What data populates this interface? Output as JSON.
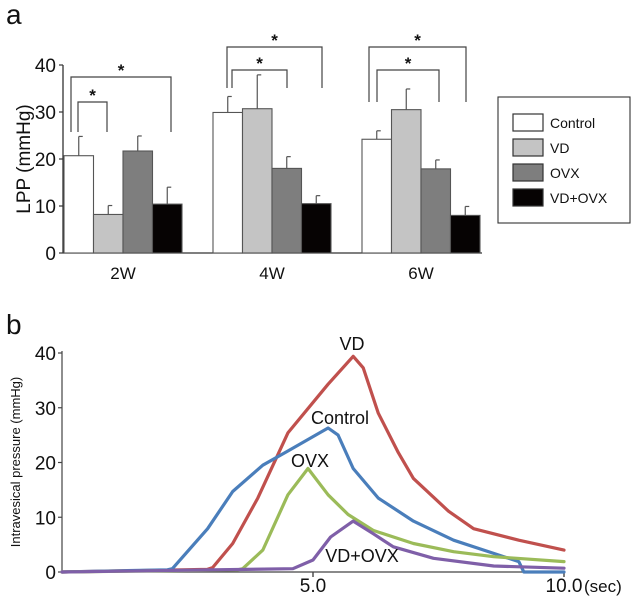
{
  "chart_data": [
    {
      "panel_label": "a",
      "type": "bar",
      "ylabel": "LPP (mmHg)",
      "xlabel": "",
      "ylim": [
        0,
        40
      ],
      "yticks": [
        0,
        10,
        20,
        30,
        40
      ],
      "grid": false,
      "legend_position": "right",
      "categories": [
        "2W",
        "4W",
        "6W"
      ],
      "series": [
        {
          "name": "Control",
          "color": "#ffffff",
          "values": [
            20.7,
            29.9,
            24.2
          ],
          "error_upper": [
            24.8,
            33.3,
            26.0
          ]
        },
        {
          "name": "VD",
          "color": "#c4c4c4",
          "values": [
            8.2,
            30.7,
            30.5
          ],
          "error_upper": [
            10.1,
            37.9,
            34.9
          ]
        },
        {
          "name": "OVX",
          "color": "#7e7e7e",
          "values": [
            21.7,
            18.0,
            17.9
          ],
          "error_upper": [
            24.9,
            20.5,
            19.8
          ]
        },
        {
          "name": "VD+OVX",
          "color": "#060303",
          "values": [
            10.4,
            10.5,
            8.0
          ],
          "error_upper": [
            14.0,
            12.2,
            9.9
          ]
        }
      ],
      "significance": [
        {
          "category": "2W",
          "from": "Control",
          "to": "VD",
          "mark": "*"
        },
        {
          "category": "2W",
          "from": "Control",
          "to": "VD+OVX",
          "mark": "*"
        },
        {
          "category": "4W",
          "from": "Control",
          "to": "OVX",
          "mark": "*"
        },
        {
          "category": "4W",
          "from": "Control",
          "to": "VD+OVX",
          "mark": "*"
        },
        {
          "category": "6W",
          "from": "Control",
          "to": "OVX",
          "mark": "*"
        },
        {
          "category": "6W",
          "from": "Control",
          "to": "VD+OVX",
          "mark": "*"
        }
      ]
    },
    {
      "panel_label": "b",
      "type": "line",
      "ylabel": "Intravesical pressure (mmHg)",
      "xunit": "(sec)",
      "xlim": [
        0,
        10
      ],
      "ylim": [
        0,
        40
      ],
      "xticks": [
        "5.0",
        "10.0"
      ],
      "yticks": [
        0,
        10,
        20,
        30,
        40
      ],
      "grid": false,
      "series": [
        {
          "name": "VD",
          "color": "#c0504d",
          "x": [
            0,
            2.9,
            3.0,
            3.4,
            3.9,
            4.5,
            5.3,
            5.8,
            6.0,
            6.3,
            6.7,
            7.0,
            7.7,
            8.2,
            9.1,
            10.0
          ],
          "y": [
            0,
            0.5,
            0.8,
            5.2,
            13.5,
            25.4,
            34.3,
            39.4,
            37.3,
            29.0,
            21.8,
            17.1,
            11.1,
            7.9,
            5.8,
            4.0
          ]
        },
        {
          "name": "Control",
          "color": "#4a7ebb",
          "x": [
            0,
            2.1,
            2.2,
            2.9,
            3.4,
            4.0,
            4.5,
            5.3,
            5.5,
            5.8,
            6.3,
            7.0,
            7.8,
            8.6,
            9.1,
            9.2,
            10.0
          ],
          "y": [
            0,
            0.4,
            0.6,
            7.9,
            14.7,
            19.5,
            22.1,
            26.3,
            25.0,
            18.9,
            13.5,
            9.3,
            5.8,
            3.4,
            1.9,
            0,
            0
          ]
        },
        {
          "name": "OVX",
          "color": "#9bbb59",
          "x": [
            0,
            3.5,
            3.6,
            4.0,
            4.5,
            4.9,
            5.3,
            5.7,
            6.2,
            7.0,
            7.8,
            8.6,
            10.0
          ],
          "y": [
            0,
            0.4,
            0.6,
            4.0,
            14.1,
            18.9,
            14.1,
            10.5,
            7.6,
            5.2,
            3.7,
            2.8,
            1.9
          ]
        },
        {
          "name": "VD+OVX",
          "color": "#7f5fa8",
          "x": [
            0,
            4.6,
            5.0,
            5.35,
            5.8,
            6.2,
            6.6,
            7.4,
            8.6,
            10.0
          ],
          "y": [
            0,
            0.6,
            2.2,
            6.4,
            9.3,
            7.0,
            4.6,
            2.5,
            1.1,
            0.7
          ]
        }
      ]
    }
  ]
}
